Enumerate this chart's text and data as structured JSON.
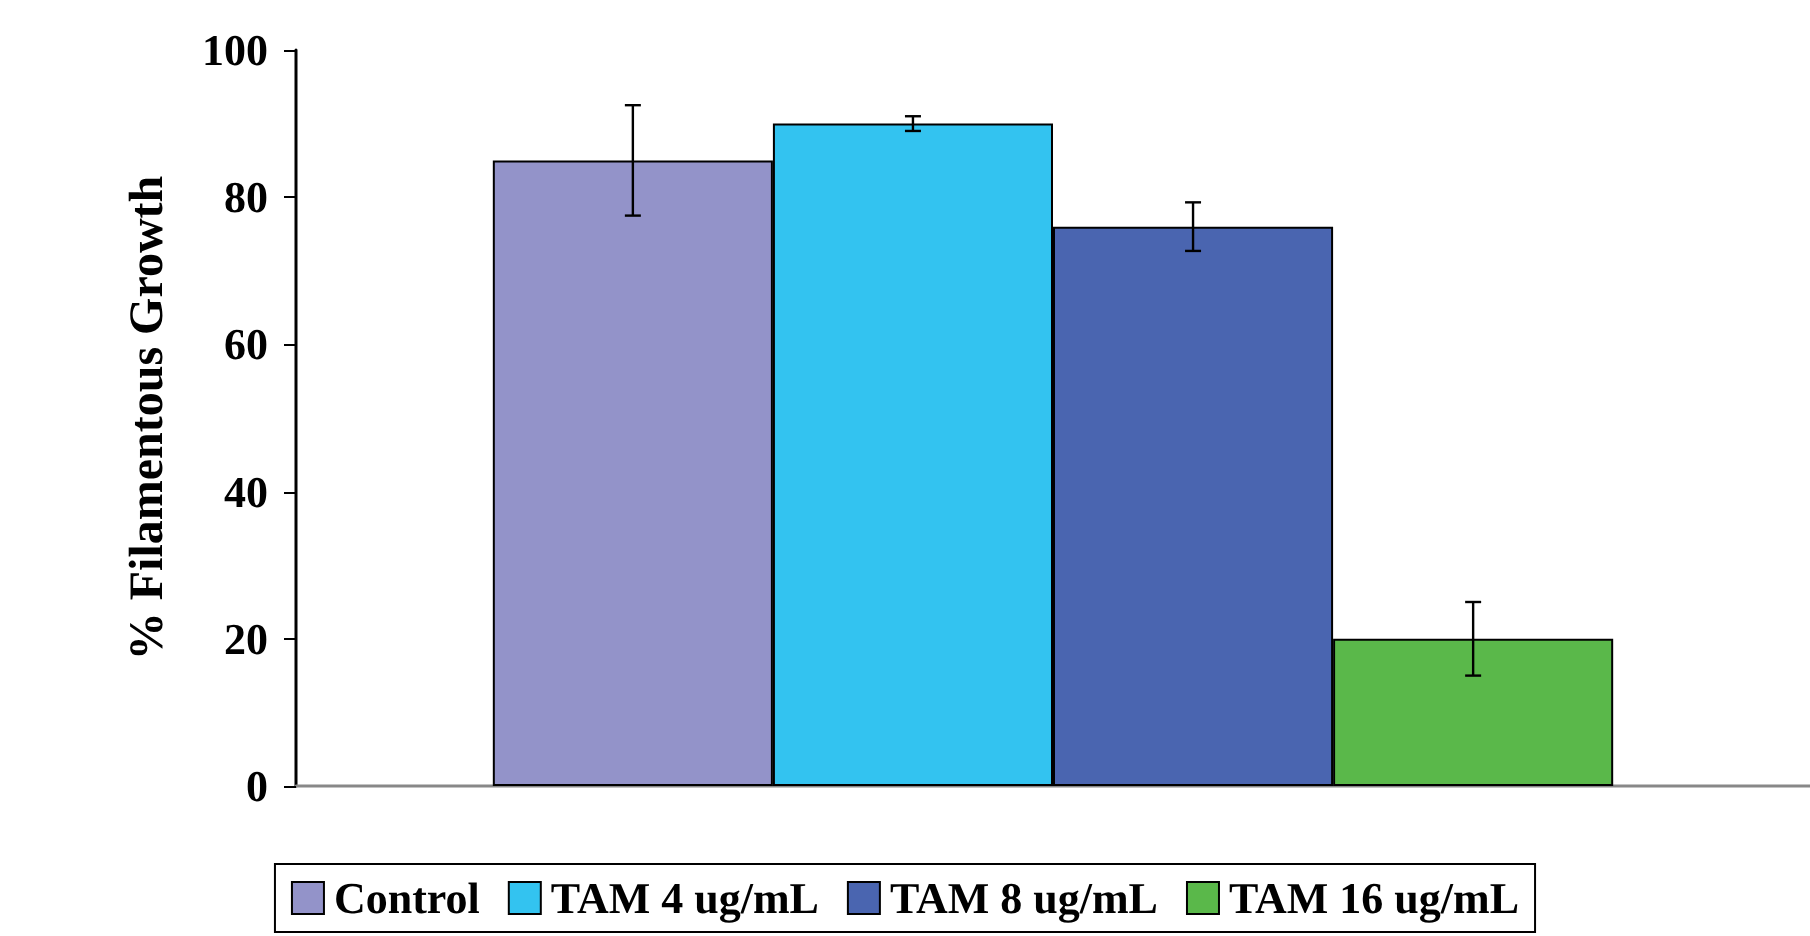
{
  "chart_data": {
    "type": "bar",
    "ylabel": "% Filamentous Growth",
    "categories": [
      null
    ],
    "series": [
      {
        "name": "Control",
        "color": "#9393c9",
        "values": [
          85
        ],
        "errors": [
          7.5
        ]
      },
      {
        "name": "TAM 4 ug/mL",
        "color": "#33c3f0",
        "values": [
          90
        ],
        "errors": [
          1
        ]
      },
      {
        "name": "TAM 8 ug/mL",
        "color": "#4a65b0",
        "values": [
          76
        ],
        "errors": [
          3.3
        ]
      },
      {
        "name": "TAM 16 ug/mL",
        "color": "#5ab84a",
        "values": [
          20
        ],
        "errors": [
          5
        ]
      }
    ],
    "ylim": [
      0,
      100
    ],
    "yticks": [
      0,
      20,
      40,
      60,
      80,
      100
    ],
    "legend": "bottom"
  }
}
